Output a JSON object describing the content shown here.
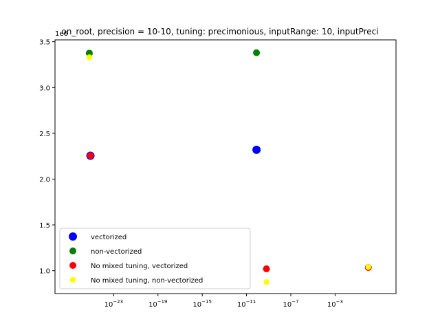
{
  "chart_data": {
    "type": "scatter",
    "title": "on_root, precision = 10-10, tuning: precimonious, inputRange: 10, inputPreci",
    "xscale": "log",
    "xlim_exp": [
      -28.3,
      2.5
    ],
    "ylim": [
      0.75,
      3.52
    ],
    "y_offset_text": "1e6",
    "xticks": [
      {
        "exp": -23,
        "label": "10",
        "sup": "−23"
      },
      {
        "exp": -19,
        "label": "10",
        "sup": "−19"
      },
      {
        "exp": -15,
        "label": "10",
        "sup": "−15"
      },
      {
        "exp": -11,
        "label": "10",
        "sup": "−11"
      },
      {
        "exp": -7,
        "label": "10",
        "sup": "−7"
      },
      {
        "exp": -3,
        "label": "10",
        "sup": "−3"
      }
    ],
    "yticks": [
      "1.0",
      "1.5",
      "2.0",
      "2.5",
      "3.0",
      "3.5"
    ],
    "legend_position": "lower-left",
    "series": [
      {
        "name": "vectorized",
        "color": "#0000ff",
        "marker_size": "large",
        "points": [
          {
            "x_exp": -25.1,
            "y": 2.255
          },
          {
            "x_exp": -10.1,
            "y": 2.32
          }
        ]
      },
      {
        "name": "non-vectorized",
        "color": "#008000",
        "marker_size": "medium",
        "points": [
          {
            "x_exp": -25.2,
            "y": 3.375
          },
          {
            "x_exp": -10.1,
            "y": 3.38
          }
        ]
      },
      {
        "name": "No mixed tuning, vectorized",
        "color": "#ff0000",
        "marker_size": "medium",
        "points": [
          {
            "x_exp": -25.1,
            "y": 2.255
          },
          {
            "x_exp": -9.2,
            "y": 1.02
          },
          {
            "x_exp": 0.0,
            "y": 1.035
          }
        ]
      },
      {
        "name": "No mixed tuning, non-vectorized",
        "color": "#ffff00",
        "marker_size": "small",
        "points": [
          {
            "x_exp": -25.2,
            "y": 3.33
          },
          {
            "x_exp": -9.2,
            "y": 0.875
          },
          {
            "x_exp": 0.0,
            "y": 1.04
          }
        ]
      }
    ]
  }
}
